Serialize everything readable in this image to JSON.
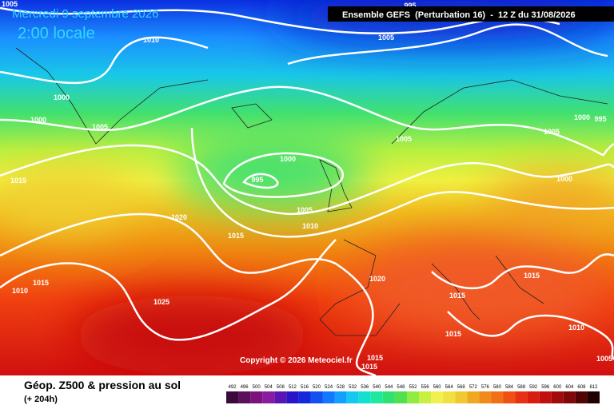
{
  "header": {
    "date": "Mercredi 9 septembre 2026",
    "time": "2:00 locale",
    "run": "Ensemble GEFS  (Perturbation 16)  -  12 Z du 31/08/2026",
    "copyright": "Copyright © 2026 Meteociel.fr"
  },
  "footer": {
    "title": "Géop. Z500 & pression au sol",
    "lead": "(+ 204h)"
  },
  "isobar_labels": [
    1005,
    995,
    1005,
    1010,
    1000,
    1000,
    1005,
    1000,
    995,
    1005,
    1000,
    995,
    1005,
    1000,
    1015,
    1020,
    1005,
    1010,
    1015,
    1015,
    1010,
    1025,
    1020,
    1015,
    1015,
    1015,
    1010,
    1015,
    1015,
    1005
  ],
  "legend": {
    "values": [
      492,
      496,
      500,
      504,
      508,
      512,
      516,
      520,
      524,
      528,
      532,
      536,
      540,
      544,
      548,
      552,
      556,
      560,
      564,
      568,
      572,
      576,
      580,
      584,
      588,
      592,
      596,
      600,
      604,
      608,
      612
    ],
    "colors": [
      "#3a0a3a",
      "#5a105a",
      "#7a147a",
      "#8a1aa0",
      "#5a14b4",
      "#2a14c8",
      "#1428dc",
      "#1450f0",
      "#1478ff",
      "#14a0ff",
      "#14c8f0",
      "#14e0d0",
      "#20e8a0",
      "#30e070",
      "#50e050",
      "#90ec40",
      "#c8f040",
      "#f0f050",
      "#f0e040",
      "#f0c830",
      "#f0a820",
      "#f08a18",
      "#f07018",
      "#f05014",
      "#e83014",
      "#d81c10",
      "#c01010",
      "#a00c0c",
      "#800808",
      "#500404",
      "#200000"
    ]
  }
}
